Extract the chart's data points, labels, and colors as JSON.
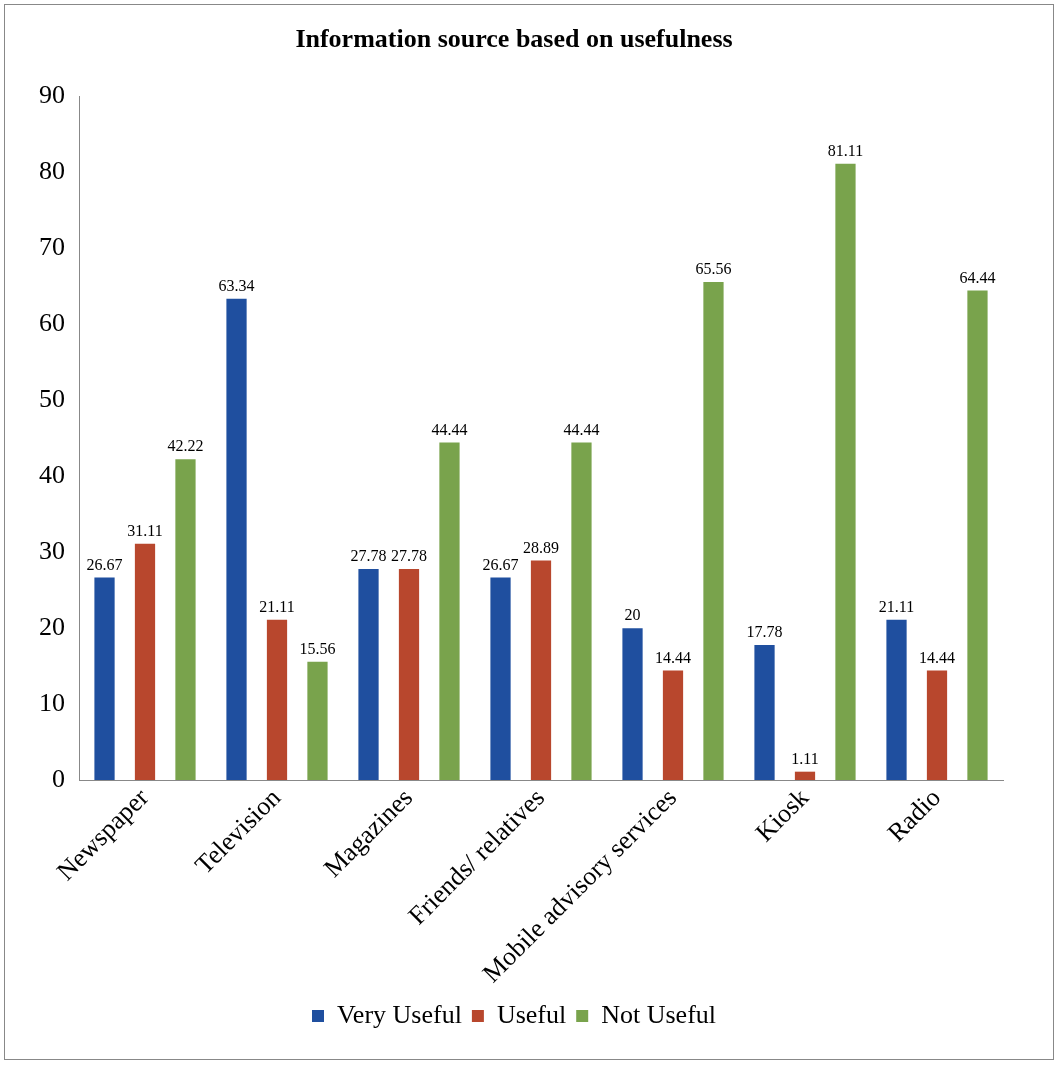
{
  "chart_data": {
    "type": "bar",
    "title": "Information source based on usefulness",
    "categories": [
      "Newspaper",
      "Television",
      "Magazines",
      "Friends/ relatives",
      "Mobile advisory services",
      "Kiosk",
      "Radio"
    ],
    "series": [
      {
        "name": "Very Useful",
        "color": "#1f4f9f",
        "values": [
          26.67,
          63.34,
          27.78,
          26.67,
          20,
          17.78,
          21.11
        ]
      },
      {
        "name": "Useful",
        "color": "#b8472d",
        "values": [
          31.11,
          21.11,
          27.78,
          28.89,
          14.44,
          1.11,
          14.44
        ]
      },
      {
        "name": "Not Useful",
        "color": "#79a34c",
        "values": [
          42.22,
          15.56,
          44.44,
          44.44,
          65.56,
          81.11,
          64.44
        ]
      }
    ],
    "ylim": [
      0,
      90
    ],
    "yticks": [
      0,
      10,
      20,
      30,
      40,
      50,
      60,
      70,
      80,
      90
    ],
    "grid": false,
    "legend": "bottom",
    "data_labels": true
  }
}
